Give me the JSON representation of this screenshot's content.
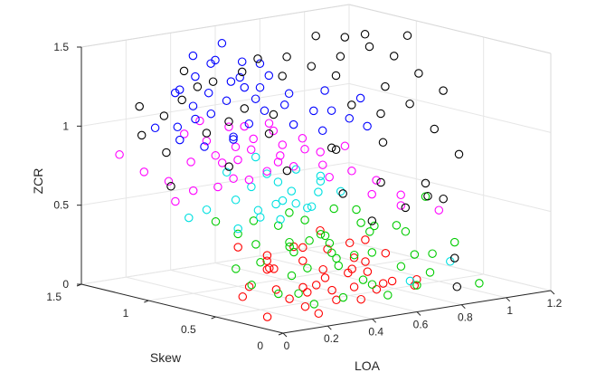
{
  "chart_data": {
    "type": "scatter3d",
    "title": "",
    "xlabel": "LOA",
    "ylabel": "Skew",
    "zlabel": "ZCR",
    "xlim": [
      0,
      1.2
    ],
    "ylim": [
      0,
      1.5
    ],
    "zlim": [
      0,
      1.5
    ],
    "x_ticks": [
      "0",
      "0.2",
      "0.4",
      "0.6",
      "0.8",
      "1",
      "1.2"
    ],
    "y_ticks": [
      "0",
      "0.5",
      "1",
      "1.5"
    ],
    "z_ticks": [
      "0",
      "0.5",
      "1",
      "1.5"
    ],
    "grid": true,
    "marker": "open-circle",
    "series": [
      {
        "color": "#ff0000",
        "points": [
          [
            0.05,
            0.2,
            0.05
          ],
          [
            0.12,
            0.5,
            0.1
          ],
          [
            0.25,
            0.25,
            0.06
          ],
          [
            0.3,
            0.35,
            0.15
          ],
          [
            0.4,
            0.3,
            0.12
          ],
          [
            0.45,
            0.5,
            0.1
          ],
          [
            0.5,
            0.25,
            0.05
          ],
          [
            0.55,
            0.4,
            0.2
          ],
          [
            0.6,
            0.3,
            0.08
          ],
          [
            0.65,
            0.45,
            0.15
          ],
          [
            0.7,
            0.35,
            0.1
          ],
          [
            0.3,
            0.6,
            0.22
          ],
          [
            0.35,
            0.7,
            0.18
          ],
          [
            0.42,
            0.55,
            0.25
          ],
          [
            0.48,
            0.65,
            0.3
          ],
          [
            0.2,
            0.4,
            0.28
          ],
          [
            0.15,
            0.3,
            0.18
          ],
          [
            0.38,
            0.45,
            0.08
          ],
          [
            0.52,
            0.55,
            0.12
          ],
          [
            0.58,
            0.35,
            0.25
          ],
          [
            0.62,
            0.5,
            0.05
          ],
          [
            0.68,
            0.6,
            0.2
          ],
          [
            0.72,
            0.45,
            0.06
          ],
          [
            0.75,
            0.25,
            0.12
          ],
          [
            0.28,
            0.2,
            0.02
          ],
          [
            0.33,
            0.5,
            0.04
          ],
          [
            0.44,
            0.4,
            0.35
          ],
          [
            0.5,
            0.75,
            0.28
          ],
          [
            0.26,
            0.55,
            0.32
          ],
          [
            0.46,
            0.28,
            0.22
          ],
          [
            0.54,
            0.62,
            0.4
          ],
          [
            0.36,
            0.3,
            0.26
          ],
          [
            0.64,
            0.3,
            0.3
          ],
          [
            0.18,
            0.55,
            0.14
          ],
          [
            0.41,
            0.8,
            0.2
          ],
          [
            0.57,
            0.45,
            0.35
          ],
          [
            0.7,
            0.55,
            0.32
          ],
          [
            0.8,
            0.35,
            0.05
          ],
          [
            0.22,
            0.7,
            0.35
          ],
          [
            0.48,
            0.4,
            0.02
          ]
        ]
      },
      {
        "color": "#00cc00",
        "points": [
          [
            0.1,
            0.4,
            0.2
          ],
          [
            0.15,
            0.6,
            0.25
          ],
          [
            0.2,
            0.5,
            0.3
          ],
          [
            0.25,
            0.45,
            0.1
          ],
          [
            0.3,
            0.7,
            0.35
          ],
          [
            0.35,
            0.4,
            0.25
          ],
          [
            0.4,
            0.6,
            0.15
          ],
          [
            0.45,
            0.35,
            0.3
          ],
          [
            0.5,
            0.55,
            0.4
          ],
          [
            0.55,
            0.5,
            0.2
          ],
          [
            0.6,
            0.65,
            0.3
          ],
          [
            0.65,
            0.4,
            0.45
          ],
          [
            0.7,
            0.5,
            0.25
          ],
          [
            0.75,
            0.6,
            0.35
          ],
          [
            0.8,
            0.45,
            0.15
          ],
          [
            0.85,
            0.3,
            0.25
          ],
          [
            0.9,
            0.4,
            0.1
          ],
          [
            0.95,
            0.3,
            0.3
          ],
          [
            1.0,
            0.2,
            0.05
          ],
          [
            0.32,
            0.3,
            0.05
          ],
          [
            0.42,
            0.25,
            0.08
          ],
          [
            0.52,
            0.2,
            0.15
          ],
          [
            0.62,
            0.25,
            0.05
          ],
          [
            0.72,
            0.2,
            0.1
          ],
          [
            0.22,
            0.25,
            0.15
          ],
          [
            0.28,
            0.8,
            0.4
          ],
          [
            0.38,
            0.85,
            0.45
          ],
          [
            0.48,
            0.75,
            0.5
          ],
          [
            0.58,
            0.8,
            0.42
          ],
          [
            0.68,
            0.75,
            0.48
          ],
          [
            0.36,
            0.55,
            0.38
          ],
          [
            0.46,
            0.45,
            0.42
          ],
          [
            0.56,
            0.35,
            0.5
          ],
          [
            0.66,
            0.55,
            0.52
          ],
          [
            0.76,
            0.35,
            0.4
          ],
          [
            0.44,
            0.65,
            0.28
          ],
          [
            0.54,
            0.7,
            0.32
          ],
          [
            0.64,
            0.7,
            0.22
          ],
          [
            0.34,
            0.6,
            0.48
          ],
          [
            0.24,
            0.35,
            0.42
          ],
          [
            0.74,
            0.25,
            0.28
          ],
          [
            0.84,
            0.55,
            0.38
          ],
          [
            0.94,
            0.5,
            0.55
          ],
          [
            0.18,
            0.8,
            0.5
          ],
          [
            0.5,
            0.3,
            0.32
          ],
          [
            0.6,
            0.4,
            0.12
          ]
        ]
      },
      {
        "color": "#00e0e0",
        "points": [
          [
            0.2,
            0.9,
            0.55
          ],
          [
            0.3,
            0.85,
            0.6
          ],
          [
            0.35,
            0.75,
            0.5
          ],
          [
            0.4,
            0.9,
            0.65
          ],
          [
            0.45,
            0.8,
            0.55
          ],
          [
            0.5,
            0.95,
            0.7
          ],
          [
            0.55,
            0.85,
            0.6
          ],
          [
            0.6,
            0.9,
            0.5
          ],
          [
            0.65,
            0.8,
            0.65
          ],
          [
            0.7,
            0.9,
            0.55
          ],
          [
            0.25,
            0.75,
            0.45
          ],
          [
            0.42,
            0.7,
            0.6
          ],
          [
            0.52,
            0.65,
            0.55
          ],
          [
            0.62,
            0.75,
            0.7
          ],
          [
            0.32,
            0.95,
            0.75
          ],
          [
            0.48,
            1.0,
            0.8
          ],
          [
            0.58,
            1.0,
            0.62
          ],
          [
            0.68,
            0.7,
            0.6
          ],
          [
            0.38,
            0.65,
            0.5
          ],
          [
            0.15,
            0.95,
            0.5
          ],
          [
            0.9,
            0.25,
            0.2
          ],
          [
            0.75,
            0.3,
            0.1
          ],
          [
            0.44,
            0.55,
            0.58
          ],
          [
            0.54,
            0.8,
            0.75
          ],
          [
            0.28,
            0.65,
            0.58
          ]
        ]
      },
      {
        "color": "#ff00ff",
        "points": [
          [
            0.1,
            1.2,
            0.75
          ],
          [
            0.15,
            1.1,
            0.7
          ],
          [
            0.2,
            1.0,
            0.65
          ],
          [
            0.25,
            1.1,
            0.8
          ],
          [
            0.3,
            1.0,
            0.85
          ],
          [
            0.35,
            1.15,
            0.9
          ],
          [
            0.4,
            1.0,
            0.8
          ],
          [
            0.45,
            1.1,
            0.85
          ],
          [
            0.5,
            1.05,
            0.9
          ],
          [
            0.55,
            1.15,
            0.8
          ],
          [
            0.6,
            1.0,
            0.85
          ],
          [
            0.65,
            1.1,
            0.75
          ],
          [
            0.7,
            1.0,
            0.8
          ],
          [
            0.75,
            0.95,
            0.7
          ],
          [
            0.8,
            1.05,
            0.75
          ],
          [
            0.85,
            0.9,
            0.65
          ],
          [
            0.9,
            0.8,
            0.6
          ],
          [
            0.95,
            0.7,
            0.45
          ],
          [
            0.22,
            0.85,
            0.7
          ],
          [
            0.32,
            0.9,
            0.72
          ],
          [
            0.42,
            0.95,
            0.68
          ],
          [
            0.52,
            0.9,
            0.78
          ],
          [
            0.62,
            0.95,
            0.72
          ],
          [
            0.72,
            0.85,
            0.65
          ],
          [
            0.05,
            1.3,
            0.85
          ],
          [
            0.12,
            1.0,
            0.6
          ],
          [
            0.28,
            1.2,
            0.95
          ],
          [
            0.38,
            1.25,
            1.0
          ],
          [
            0.48,
            1.2,
            0.95
          ],
          [
            0.58,
            1.25,
            0.92
          ],
          [
            0.68,
            1.2,
            0.88
          ],
          [
            0.78,
            1.15,
            0.82
          ],
          [
            0.88,
            1.0,
            0.78
          ],
          [
            0.98,
            0.75,
            0.5
          ],
          [
            1.0,
            0.5,
            0.45
          ],
          [
            0.44,
            0.85,
            0.75
          ],
          [
            0.54,
            1.0,
            1.0
          ],
          [
            0.36,
            1.05,
            0.78
          ],
          [
            0.82,
            0.7,
            0.55
          ]
        ]
      },
      {
        "color": "#0000ff",
        "points": [
          [
            0.2,
            1.1,
            0.95
          ],
          [
            0.25,
            1.2,
            1.0
          ],
          [
            0.3,
            1.15,
            1.05
          ],
          [
            0.35,
            1.25,
            1.1
          ],
          [
            0.4,
            1.2,
            1.05
          ],
          [
            0.45,
            1.3,
            1.15
          ],
          [
            0.5,
            1.25,
            1.1
          ],
          [
            0.55,
            1.3,
            1.2
          ],
          [
            0.6,
            1.2,
            1.1
          ],
          [
            0.65,
            1.25,
            1.15
          ],
          [
            0.7,
            1.15,
            1.05
          ],
          [
            0.75,
            1.2,
            1.1
          ],
          [
            0.8,
            1.1,
            1.0
          ],
          [
            0.85,
            1.05,
            1.0
          ],
          [
            0.9,
            1.0,
            0.95
          ],
          [
            0.95,
            0.95,
            0.9
          ],
          [
            0.42,
            1.35,
            1.25
          ],
          [
            0.52,
            1.4,
            1.3
          ],
          [
            0.62,
            1.35,
            1.2
          ],
          [
            0.72,
            1.3,
            1.2
          ],
          [
            0.32,
            1.3,
            1.2
          ],
          [
            0.47,
            1.45,
            1.35
          ],
          [
            0.57,
            1.45,
            1.3
          ],
          [
            0.38,
            1.0,
            0.95
          ],
          [
            0.48,
            1.05,
            1.0
          ],
          [
            0.58,
            1.1,
            1.05
          ],
          [
            0.68,
            1.05,
            0.95
          ],
          [
            0.78,
            1.0,
            0.9
          ],
          [
            0.28,
            1.05,
            0.9
          ],
          [
            0.18,
            1.25,
            1.0
          ],
          [
            0.88,
            1.15,
            1.1
          ],
          [
            0.98,
            1.05,
            1.05
          ],
          [
            0.66,
            1.4,
            1.28
          ],
          [
            0.36,
            1.4,
            1.15
          ],
          [
            0.52,
            1.15,
            1.2
          ],
          [
            0.44,
            1.1,
            0.9
          ],
          [
            0.74,
            1.4,
            1.25
          ],
          [
            0.6,
            1.45,
            1.4
          ]
        ]
      },
      {
        "color": "#000000",
        "points": [
          [
            0.15,
            1.3,
            0.95
          ],
          [
            0.2,
            1.2,
            0.85
          ],
          [
            0.25,
            1.3,
            1.05
          ],
          [
            0.3,
            1.25,
            1.15
          ],
          [
            0.35,
            1.15,
            0.95
          ],
          [
            0.4,
            1.3,
            1.2
          ],
          [
            0.45,
            1.15,
            1.0
          ],
          [
            0.5,
            1.35,
            1.2
          ],
          [
            0.55,
            1.2,
            1.05
          ],
          [
            0.6,
            1.3,
            1.25
          ],
          [
            0.65,
            1.15,
            1.0
          ],
          [
            0.7,
            1.35,
            1.3
          ],
          [
            0.75,
            1.25,
            1.2
          ],
          [
            0.8,
            1.3,
            1.3
          ],
          [
            0.85,
            1.2,
            1.25
          ],
          [
            0.9,
            1.1,
            1.2
          ],
          [
            0.95,
            1.15,
            1.3
          ],
          [
            1.0,
            1.2,
            1.4
          ],
          [
            1.05,
            1.1,
            1.35
          ],
          [
            1.1,
            1.0,
            1.3
          ],
          [
            1.15,
            0.9,
            1.2
          ],
          [
            1.2,
            0.8,
            1.1
          ],
          [
            1.0,
            0.9,
            1.15
          ],
          [
            1.05,
            0.8,
            1.05
          ],
          [
            1.1,
            0.7,
            0.9
          ],
          [
            0.95,
            0.85,
            1.0
          ],
          [
            0.9,
            0.75,
            0.85
          ],
          [
            1.15,
            0.6,
            0.75
          ],
          [
            1.0,
            0.6,
            0.6
          ],
          [
            0.95,
            0.5,
            0.55
          ],
          [
            0.85,
            0.5,
            0.5
          ],
          [
            0.8,
            0.6,
            0.65
          ],
          [
            0.1,
            1.0,
            0.7
          ],
          [
            0.3,
            0.9,
            0.8
          ],
          [
            0.5,
            0.8,
            0.75
          ],
          [
            0.7,
            0.8,
            0.85
          ],
          [
            1.1,
            0.9,
            1.45
          ],
          [
            1.0,
            1.05,
            1.45
          ],
          [
            0.9,
            1.25,
            1.42
          ],
          [
            0.2,
            1.4,
            1.1
          ],
          [
            0.4,
            1.4,
            1.28
          ],
          [
            0.6,
            1.1,
            0.9
          ],
          [
            0.78,
            0.9,
            0.8
          ],
          [
            0.88,
            0.95,
            1.05
          ],
          [
            0.9,
            0.2,
            0.05
          ],
          [
            0.95,
            0.3,
            0.2
          ],
          [
            1.05,
            0.55,
            0.5
          ],
          [
            0.7,
            0.5,
            0.45
          ],
          [
            0.66,
            0.65,
            0.6
          ]
        ]
      }
    ]
  }
}
